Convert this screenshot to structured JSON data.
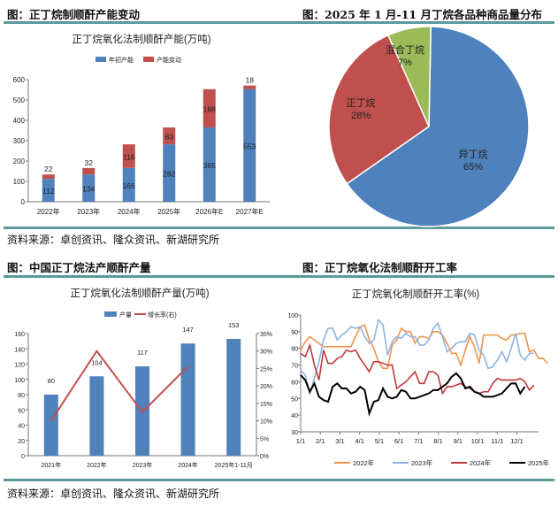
{
  "headers": {
    "h1": "图：正丁烷制顺酐产能变动",
    "h2": "图：2025 年 1 月-11 月丁烷各品种商品量分布",
    "h3": "图：中国正丁烷法产顺酐产量",
    "h4": "图：正丁烷氧化法制顺酐开工率"
  },
  "sources": {
    "s1": "资料来源：卓创资讯、隆众资讯、新湖研究所",
    "s2": "资料来源：卓创资讯、隆众资讯、新湖研究所"
  },
  "chart_data": [
    {
      "type": "bar",
      "stacked": true,
      "title": "正丁烷氧化法制顺酐产能(万吨)",
      "categories": [
        "2022年",
        "2023年",
        "2024年",
        "2025年",
        "2026年E",
        "2027年E"
      ],
      "series": [
        {
          "name": "年初产能",
          "color": "#4f81bd",
          "values": [
            112,
            134,
            166,
            282,
            365,
            553
          ]
        },
        {
          "name": "产能变动",
          "color": "#c0504d",
          "values": [
            22,
            32,
            116,
            83,
            188,
            18
          ]
        }
      ],
      "ylim": [
        0,
        600
      ],
      "yticks": [
        0,
        100,
        200,
        300,
        400,
        500,
        600
      ],
      "legend": "top"
    },
    {
      "type": "pie",
      "title": "",
      "slices": [
        {
          "label": "异丁烷",
          "value": 65,
          "pct": "65%",
          "color": "#4f81bd"
        },
        {
          "label": "正丁烷",
          "value": 28,
          "pct": "28%",
          "color": "#c0504d"
        },
        {
          "label": "混合丁烷",
          "value": 7,
          "pct": "7%",
          "color": "#9bbb59"
        }
      ]
    },
    {
      "type": "bar",
      "title": "正丁烷氧化法制顺酐产量(万吨)",
      "categories": [
        "2021年",
        "2022年",
        "2023年",
        "2024年",
        "2025年1-11月"
      ],
      "series": [
        {
          "name": "产量",
          "color": "#4f81bd",
          "values": [
            80,
            104,
            117,
            147,
            153
          ]
        },
        {
          "name": "增长率(右)",
          "color": "#c0504d",
          "type": "line",
          "axis": "right",
          "values": [
            10,
            30,
            12.5,
            25.6,
            null
          ]
        }
      ],
      "ylim": [
        0,
        160
      ],
      "yticks": [
        0,
        20,
        40,
        60,
        80,
        100,
        120,
        140,
        160
      ],
      "y2lim": [
        0,
        35
      ],
      "y2ticks": [
        "0%",
        "5%",
        "10%",
        "15%",
        "20%",
        "25%",
        "30%",
        "35%"
      ],
      "legend": "top"
    },
    {
      "type": "line",
      "title": "正丁烷氧化制顺酐开工率(%)",
      "xticks": [
        "1/1",
        "2/1",
        "3/1",
        "4/1",
        "5/1",
        "6/1",
        "7/1",
        "8/1",
        "9/1",
        "10/1",
        "11/1",
        "12/1"
      ],
      "ylim": [
        30,
        100
      ],
      "yticks": [
        30,
        40,
        50,
        60,
        70,
        80,
        90,
        100
      ],
      "x_unit": "week",
      "legend": "bottom",
      "series": [
        {
          "name": "2022年",
          "color": "#f0954a",
          "values": [
            79,
            84,
            87,
            85,
            83,
            81,
            81,
            81,
            81,
            81,
            81,
            81,
            87,
            93,
            94,
            85,
            80,
            72,
            68,
            68,
            82,
            85,
            92,
            90,
            90,
            83,
            87,
            87,
            86,
            90,
            90,
            88,
            83,
            77,
            77,
            70,
            79,
            87,
            81,
            71,
            88,
            88,
            88,
            88,
            86,
            85,
            88,
            88,
            89,
            89,
            78,
            79,
            74,
            74,
            71
          ]
        },
        {
          "name": "2023年",
          "color": "#8db4e2",
          "values": [
            67,
            64,
            53,
            62,
            72,
            85,
            92,
            92,
            85,
            88,
            90,
            93,
            92,
            93,
            87,
            83,
            85,
            97,
            94,
            76,
            84,
            87,
            86,
            89,
            87,
            87,
            82,
            82,
            85,
            92,
            95,
            87,
            78,
            80,
            83,
            84,
            84,
            89,
            88,
            79,
            76,
            68,
            69,
            73,
            78,
            72,
            80,
            89,
            76,
            73,
            77,
            77
          ]
        },
        {
          "name": "2024年",
          "color": "#c0393b",
          "values": [
            77,
            75,
            82,
            70,
            61,
            79,
            71,
            71,
            74,
            75,
            79,
            78,
            79,
            74,
            70,
            66,
            72,
            72,
            71,
            70,
            70,
            56,
            58,
            60,
            63,
            66,
            59,
            59,
            66,
            66,
            64,
            53,
            57,
            57,
            58,
            59,
            57,
            56,
            54,
            53,
            54,
            54,
            59,
            62,
            61,
            61,
            61,
            61,
            62,
            60,
            55,
            58
          ]
        },
        {
          "name": "2025年",
          "color": "#000000",
          "values": [
            64,
            61,
            54,
            59,
            51,
            49,
            48,
            57,
            59,
            56,
            56,
            53,
            54,
            57,
            55,
            41,
            48,
            49,
            56,
            51,
            50,
            51,
            55,
            54,
            50,
            50,
            51,
            52,
            53,
            55,
            55,
            57,
            59,
            63,
            65,
            62,
            56,
            57,
            54,
            53,
            51,
            51,
            51,
            52,
            53,
            56,
            59,
            59,
            53,
            57
          ]
        }
      ]
    }
  ]
}
